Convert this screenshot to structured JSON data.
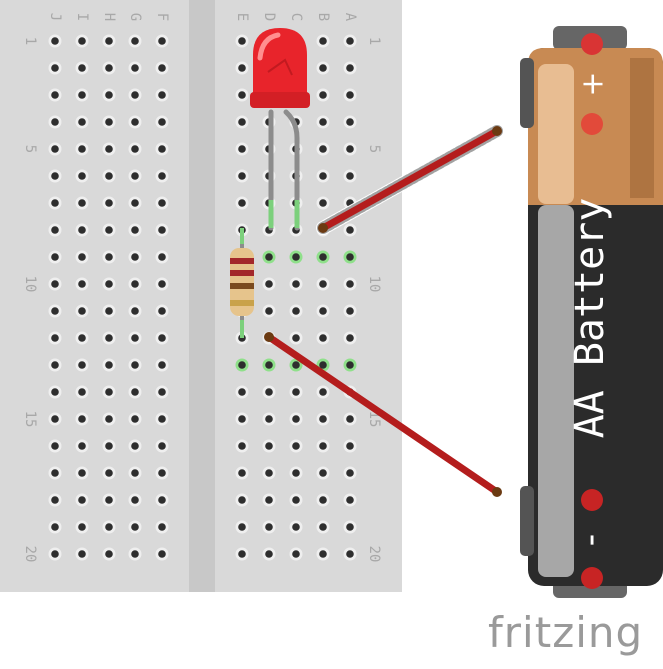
{
  "breadboard": {
    "left_columns": [
      "J",
      "I",
      "H",
      "G",
      "F"
    ],
    "right_columns": [
      "E",
      "D",
      "C",
      "B",
      "A"
    ],
    "row_labels_left": [
      "1",
      "5",
      "10",
      "15",
      "20"
    ],
    "row_labels_right": [
      "1",
      "5",
      "10",
      "15",
      "20"
    ],
    "rows": 20,
    "colors": {
      "board": "#d9d9d9",
      "channel": "#c8c8c8",
      "hole": "#2e2e2e",
      "hole_ring": "#efefef",
      "highlight": "#8fe08a",
      "label": "#a8a8a8"
    }
  },
  "components": {
    "led": {
      "color": "#e8242b",
      "name": "red-led"
    },
    "resistor": {
      "band_colors": [
        "#a3282a",
        "#a3282a",
        "#7a4a1e",
        "#c9a24a"
      ]
    },
    "wire_color": "#b41d1d"
  },
  "battery": {
    "label": "AA Battery",
    "plus": "+",
    "minus": "-",
    "colors": {
      "top": "#c88a53",
      "body": "#2b2b2b",
      "terminal": "#d93434"
    }
  },
  "logo": {
    "text": "fritzing",
    "color": "#9a9a9a"
  }
}
